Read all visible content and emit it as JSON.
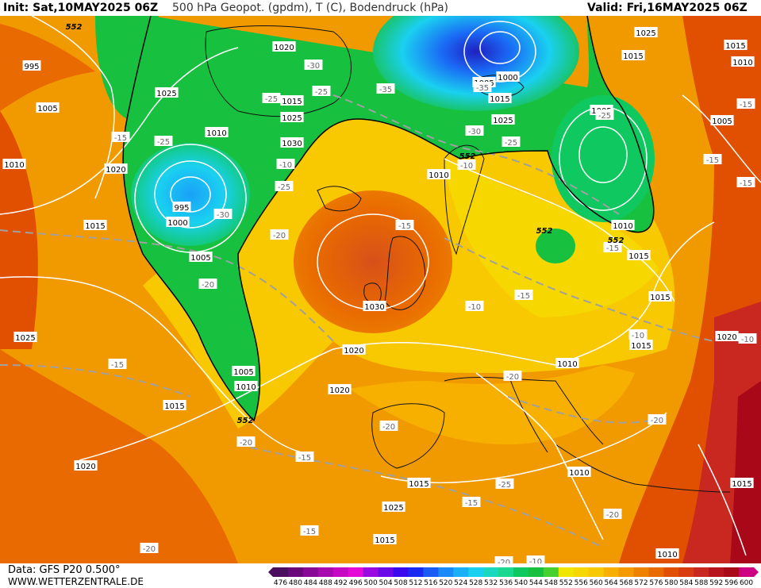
{
  "header": {
    "init": "Init: Sat,10MAY2025 06Z",
    "title": "500 hPa Geopot. (gpdm), T (C), Bodendruck (hPa)",
    "valid": "Valid: Fri,16MAY2025 06Z"
  },
  "footer": {
    "data_source": "Data: GFS P20 0.500°",
    "website": "WWW.WETTERZENTRALE.DE"
  },
  "legend": {
    "ticks": [
      "476",
      "480",
      "484",
      "488",
      "492",
      "496",
      "500",
      "504",
      "508",
      "512",
      "516",
      "520",
      "524",
      "528",
      "532",
      "536",
      "540",
      "544",
      "548",
      "552",
      "556",
      "560",
      "564",
      "568",
      "572",
      "576",
      "580",
      "584",
      "588",
      "592",
      "596",
      "600"
    ],
    "colors": [
      "#4b0e5e",
      "#6a0a7a",
      "#8a0a98",
      "#a80aaf",
      "#c60ac4",
      "#e60ad8",
      "#9a0ae0",
      "#6a0ae8",
      "#3a0aee",
      "#1a2af0",
      "#1a5af5",
      "#1a8af8",
      "#1ab0f8",
      "#1ad0f0",
      "#1ad8c0",
      "#1ad890",
      "#10c860",
      "#18c040",
      "#48d030",
      "#f0e600",
      "#f6d800",
      "#f8c800",
      "#f8b000",
      "#f49a00",
      "#ee8200",
      "#e86a00",
      "#e05000",
      "#d83c10",
      "#c82820",
      "#b81420",
      "#a80818",
      "#cc0080"
    ]
  },
  "map": {
    "pressure_labels": [
      "995",
      "1005",
      "1010",
      "1015",
      "1020",
      "1025",
      "1020",
      "1010",
      "1015",
      "1025",
      "1030",
      "995",
      "1000",
      "1005",
      "1005",
      "1010",
      "1015",
      "1020",
      "1020",
      "1015",
      "1025",
      "1030",
      "1020",
      "1015",
      "1015",
      "1010",
      "1005",
      "1000",
      "1005",
      "1015",
      "1025",
      "1010",
      "1015",
      "1005",
      "1015",
      "1020",
      "1015",
      "1010",
      "1005",
      "1010",
      "1015",
      "1015",
      "1025",
      "1015",
      "1010",
      "1010",
      "1010",
      "1010",
      "1025"
    ],
    "temperature_labels": [
      "-15",
      "-25",
      "-30",
      "-25",
      "-25",
      "-30",
      "-35",
      "-35",
      "-30",
      "-25",
      "-25",
      "-20",
      "-15",
      "-20",
      "-15",
      "-25",
      "-20",
      "-15",
      "-20",
      "-15",
      "-15",
      "-20",
      "-20",
      "-20",
      "-15",
      "-10",
      "-10",
      "-10",
      "-10",
      "-15",
      "-15",
      "-20",
      "-25",
      "-10",
      "-15",
      "-20",
      "-15",
      "-10"
    ],
    "geopotential_labels": [
      "552",
      "552",
      "552",
      "552",
      "552"
    ]
  }
}
